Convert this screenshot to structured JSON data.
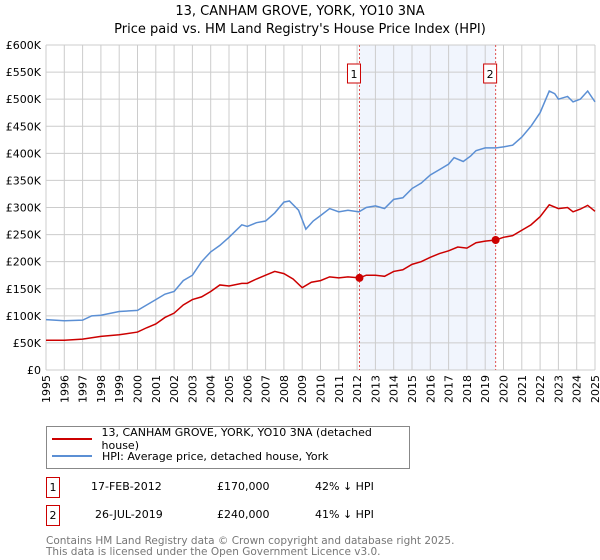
{
  "chart_data": {
    "type": "line",
    "title": "13, CANHAM GROVE, YORK, YO10 3NA",
    "subtitle": "Price paid vs. HM Land Registry's House Price Index (HPI)",
    "xlim": [
      1995,
      2025
    ],
    "ylim": [
      0,
      600000
    ],
    "x_ticks": [
      "1995",
      "1996",
      "1997",
      "1998",
      "1999",
      "2000",
      "2001",
      "2002",
      "2003",
      "2004",
      "2005",
      "2006",
      "2007",
      "2008",
      "2009",
      "2010",
      "2011",
      "2012",
      "2013",
      "2014",
      "2015",
      "2016",
      "2017",
      "2018",
      "2019",
      "2020",
      "2021",
      "2022",
      "2023",
      "2024",
      "2025"
    ],
    "y_ticks": [
      {
        "value": 0,
        "label": "£0"
      },
      {
        "value": 50000,
        "label": "£50K"
      },
      {
        "value": 100000,
        "label": "£100K"
      },
      {
        "value": 150000,
        "label": "£150K"
      },
      {
        "value": 200000,
        "label": "£200K"
      },
      {
        "value": 250000,
        "label": "£250K"
      },
      {
        "value": 300000,
        "label": "£300K"
      },
      {
        "value": 350000,
        "label": "£350K"
      },
      {
        "value": 400000,
        "label": "£400K"
      },
      {
        "value": 450000,
        "label": "£450K"
      },
      {
        "value": 500000,
        "label": "£500K"
      },
      {
        "value": 550000,
        "label": "£550K"
      },
      {
        "value": 600000,
        "label": "£600K"
      }
    ],
    "grid": true,
    "shaded_range": [
      2012.13,
      2019.57
    ],
    "series": [
      {
        "name": "13, CANHAM GROVE, YORK, YO10 3NA (detached house)",
        "color": "#cc0000",
        "points": [
          [
            1995,
            55000
          ],
          [
            1996,
            55000
          ],
          [
            1997,
            57000
          ],
          [
            1998,
            62000
          ],
          [
            1999,
            65000
          ],
          [
            2000,
            70000
          ],
          [
            2000.5,
            78000
          ],
          [
            2001,
            85000
          ],
          [
            2001.5,
            97000
          ],
          [
            2002,
            105000
          ],
          [
            2002.5,
            120000
          ],
          [
            2003,
            130000
          ],
          [
            2003.5,
            135000
          ],
          [
            2004,
            145000
          ],
          [
            2004.5,
            157000
          ],
          [
            2005,
            155000
          ],
          [
            2005.7,
            160000
          ],
          [
            2006,
            160000
          ],
          [
            2006.5,
            168000
          ],
          [
            2007,
            175000
          ],
          [
            2007.5,
            182000
          ],
          [
            2008,
            178000
          ],
          [
            2008.5,
            168000
          ],
          [
            2009,
            152000
          ],
          [
            2009.5,
            162000
          ],
          [
            2010,
            165000
          ],
          [
            2010.5,
            172000
          ],
          [
            2011,
            170000
          ],
          [
            2011.5,
            172000
          ],
          [
            2012.13,
            170000
          ],
          [
            2012.5,
            175000
          ],
          [
            2013,
            175000
          ],
          [
            2013.5,
            173000
          ],
          [
            2014,
            182000
          ],
          [
            2014.5,
            185000
          ],
          [
            2015,
            195000
          ],
          [
            2015.5,
            200000
          ],
          [
            2016,
            208000
          ],
          [
            2016.5,
            215000
          ],
          [
            2017,
            220000
          ],
          [
            2017.5,
            227000
          ],
          [
            2018,
            225000
          ],
          [
            2018.5,
            235000
          ],
          [
            2019,
            238000
          ],
          [
            2019.57,
            240000
          ],
          [
            2020,
            245000
          ],
          [
            2020.5,
            248000
          ],
          [
            2021,
            258000
          ],
          [
            2021.5,
            268000
          ],
          [
            2022,
            283000
          ],
          [
            2022.5,
            305000
          ],
          [
            2023,
            298000
          ],
          [
            2023.5,
            300000
          ],
          [
            2023.8,
            292000
          ],
          [
            2024.2,
            297000
          ],
          [
            2024.6,
            304000
          ],
          [
            2025,
            293000
          ]
        ]
      },
      {
        "name": "HPI: Average price, detached house, York",
        "color": "#5b8fd4",
        "points": [
          [
            1995,
            93000
          ],
          [
            1996,
            91000
          ],
          [
            1997,
            92000
          ],
          [
            1997.5,
            100000
          ],
          [
            1998,
            101000
          ],
          [
            1999,
            108000
          ],
          [
            2000,
            110000
          ],
          [
            2000.5,
            120000
          ],
          [
            2001,
            130000
          ],
          [
            2001.5,
            140000
          ],
          [
            2002,
            145000
          ],
          [
            2002.5,
            165000
          ],
          [
            2003,
            175000
          ],
          [
            2003.5,
            200000
          ],
          [
            2004,
            218000
          ],
          [
            2004.5,
            230000
          ],
          [
            2005,
            245000
          ],
          [
            2005.7,
            268000
          ],
          [
            2006,
            265000
          ],
          [
            2006.5,
            272000
          ],
          [
            2007,
            275000
          ],
          [
            2007.5,
            290000
          ],
          [
            2008,
            310000
          ],
          [
            2008.3,
            312000
          ],
          [
            2008.8,
            295000
          ],
          [
            2009.2,
            260000
          ],
          [
            2009.6,
            275000
          ],
          [
            2010,
            285000
          ],
          [
            2010.5,
            298000
          ],
          [
            2011,
            292000
          ],
          [
            2011.5,
            295000
          ],
          [
            2012.1,
            292000
          ],
          [
            2012.5,
            300000
          ],
          [
            2013,
            303000
          ],
          [
            2013.5,
            298000
          ],
          [
            2014,
            315000
          ],
          [
            2014.5,
            318000
          ],
          [
            2015,
            335000
          ],
          [
            2015.5,
            345000
          ],
          [
            2016,
            360000
          ],
          [
            2016.5,
            370000
          ],
          [
            2017,
            380000
          ],
          [
            2017.3,
            392000
          ],
          [
            2017.8,
            385000
          ],
          [
            2018.2,
            395000
          ],
          [
            2018.5,
            405000
          ],
          [
            2019,
            410000
          ],
          [
            2019.6,
            410000
          ],
          [
            2020,
            412000
          ],
          [
            2020.5,
            415000
          ],
          [
            2021,
            430000
          ],
          [
            2021.5,
            450000
          ],
          [
            2022,
            475000
          ],
          [
            2022.5,
            515000
          ],
          [
            2022.8,
            510000
          ],
          [
            2023,
            500000
          ],
          [
            2023.5,
            505000
          ],
          [
            2023.8,
            495000
          ],
          [
            2024.2,
            500000
          ],
          [
            2024.6,
            515000
          ],
          [
            2025,
            495000
          ]
        ]
      }
    ],
    "sales": [
      {
        "num": "1",
        "x": 2012.13,
        "value": 170000,
        "date": "17-FEB-2012",
        "price": "£170,000",
        "hpi": "42% ↓ HPI"
      },
      {
        "num": "2",
        "x": 2019.57,
        "value": 240000,
        "date": "26-JUL-2019",
        "price": "£240,000",
        "hpi": "41% ↓ HPI"
      }
    ],
    "legend": [
      "13, CANHAM GROVE, YORK, YO10 3NA (detached house)",
      "HPI: Average price, detached house, York"
    ],
    "legend_position": "below"
  },
  "footer": [
    "Contains HM Land Registry data © Crown copyright and database right 2025.",
    "This data is licensed under the Open Government Licence v3.0."
  ]
}
